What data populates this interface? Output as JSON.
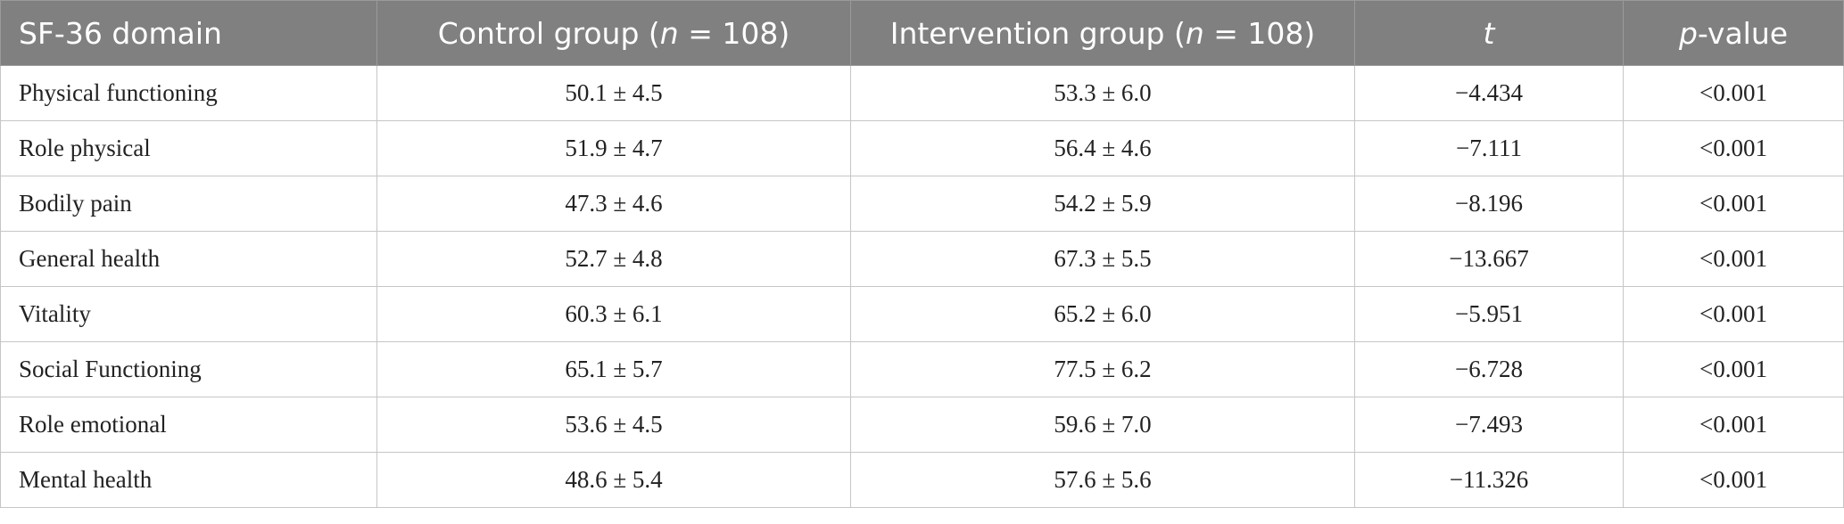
{
  "table": {
    "header": [
      [
        "SF-36 domain"
      ],
      [
        "Control group (",
        "n",
        " = 108)"
      ],
      [
        "Intervention group (",
        "n",
        " = 108)"
      ],
      [
        "t"
      ],
      [
        "p",
        "-value"
      ]
    ],
    "rows": [
      [
        "Physical functioning",
        "50.1 ± 4.5",
        "53.3 ± 6.0",
        "−4.434",
        "<0.001"
      ],
      [
        "Role physical",
        "51.9 ± 4.7",
        "56.4 ± 4.6",
        "−7.111",
        "<0.001"
      ],
      [
        "Bodily pain",
        "47.3 ± 4.6",
        "54.2 ± 5.9",
        "−8.196",
        "<0.001"
      ],
      [
        "General health",
        "52.7 ± 4.8",
        "67.3 ± 5.5",
        "−13.667",
        "<0.001"
      ],
      [
        "Vitality",
        "60.3 ± 6.1",
        "65.2 ± 6.0",
        "−5.951",
        "<0.001"
      ],
      [
        "Social Functioning",
        "65.1 ± 5.7",
        "77.5 ± 6.2",
        "−6.728",
        "<0.001"
      ],
      [
        "Role emotional",
        "53.6 ± 4.5",
        "59.6 ± 7.0",
        "−7.493",
        "<0.001"
      ],
      [
        "Mental health",
        "48.6 ± 5.4",
        "57.6 ± 5.6",
        "−11.326",
        "<0.001"
      ]
    ]
  }
}
